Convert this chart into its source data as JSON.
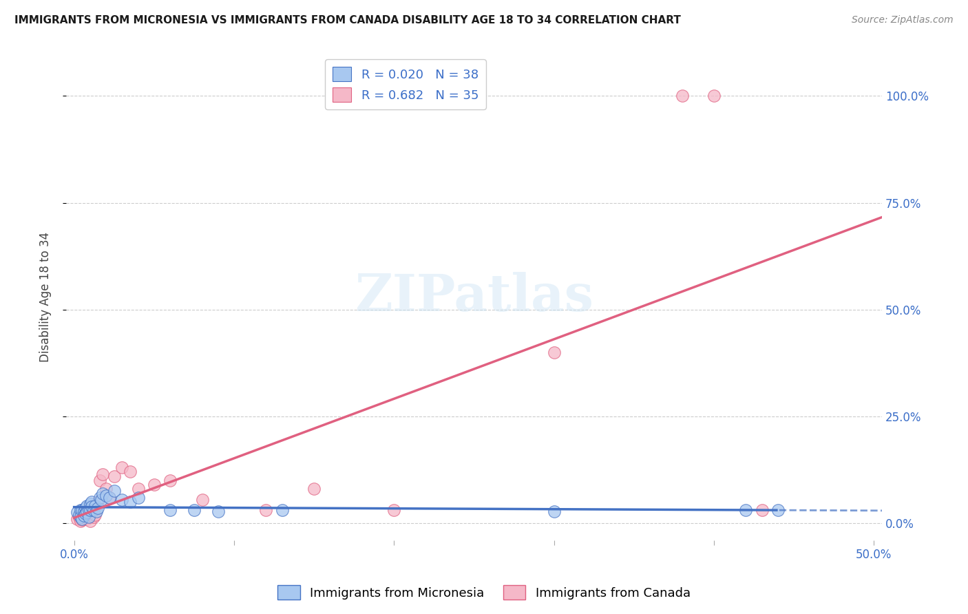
{
  "title": "IMMIGRANTS FROM MICRONESIA VS IMMIGRANTS FROM CANADA DISABILITY AGE 18 TO 34 CORRELATION CHART",
  "source": "Source: ZipAtlas.com",
  "ylabel": "Disability Age 18 to 34",
  "color_micronesia": "#a8c8f0",
  "color_canada": "#f5b8c8",
  "line_color_micronesia": "#4472c4",
  "line_color_canada": "#e06080",
  "legend_R1": "R = 0.020",
  "legend_N1": "N = 38",
  "legend_R2": "R = 0.682",
  "legend_N2": "N = 35",
  "mic_x": [
    0.002,
    0.003,
    0.004,
    0.004,
    0.005,
    0.005,
    0.006,
    0.006,
    0.007,
    0.007,
    0.008,
    0.008,
    0.009,
    0.009,
    0.01,
    0.01,
    0.011,
    0.011,
    0.012,
    0.013,
    0.014,
    0.015,
    0.016,
    0.017,
    0.018,
    0.02,
    0.022,
    0.025,
    0.03,
    0.035,
    0.04,
    0.06,
    0.075,
    0.09,
    0.13,
    0.3,
    0.42,
    0.44
  ],
  "mic_y": [
    0.025,
    0.02,
    0.03,
    0.015,
    0.03,
    0.01,
    0.028,
    0.018,
    0.035,
    0.022,
    0.04,
    0.025,
    0.03,
    0.015,
    0.045,
    0.03,
    0.05,
    0.038,
    0.03,
    0.04,
    0.028,
    0.035,
    0.06,
    0.055,
    0.07,
    0.065,
    0.06,
    0.075,
    0.055,
    0.05,
    0.06,
    0.03,
    0.03,
    0.028,
    0.03,
    0.028,
    0.03,
    0.03
  ],
  "can_x": [
    0.002,
    0.003,
    0.004,
    0.005,
    0.005,
    0.006,
    0.007,
    0.007,
    0.008,
    0.008,
    0.009,
    0.01,
    0.01,
    0.011,
    0.012,
    0.013,
    0.015,
    0.016,
    0.018,
    0.02,
    0.022,
    0.025,
    0.03,
    0.035,
    0.04,
    0.05,
    0.06,
    0.08,
    0.12,
    0.15,
    0.2,
    0.3,
    0.38,
    0.4,
    0.43
  ],
  "can_y": [
    0.01,
    0.015,
    0.005,
    0.02,
    0.008,
    0.025,
    0.015,
    0.03,
    0.01,
    0.02,
    0.015,
    0.025,
    0.005,
    0.035,
    0.015,
    0.02,
    0.05,
    0.1,
    0.115,
    0.08,
    0.06,
    0.11,
    0.13,
    0.12,
    0.08,
    0.09,
    0.1,
    0.055,
    0.03,
    0.08,
    0.03,
    0.4,
    1.0,
    1.0,
    0.03
  ],
  "xlim_min": -0.005,
  "xlim_max": 0.505,
  "ylim_min": -0.04,
  "ylim_max": 1.1,
  "xticks": [
    0.0,
    0.1,
    0.2,
    0.3,
    0.4,
    0.5
  ],
  "yticks": [
    0.0,
    0.25,
    0.5,
    0.75,
    1.0
  ],
  "ytick_labels_right": [
    "0.0%",
    "25.0%",
    "50.0%",
    "75.0%",
    "100.0%"
  ]
}
